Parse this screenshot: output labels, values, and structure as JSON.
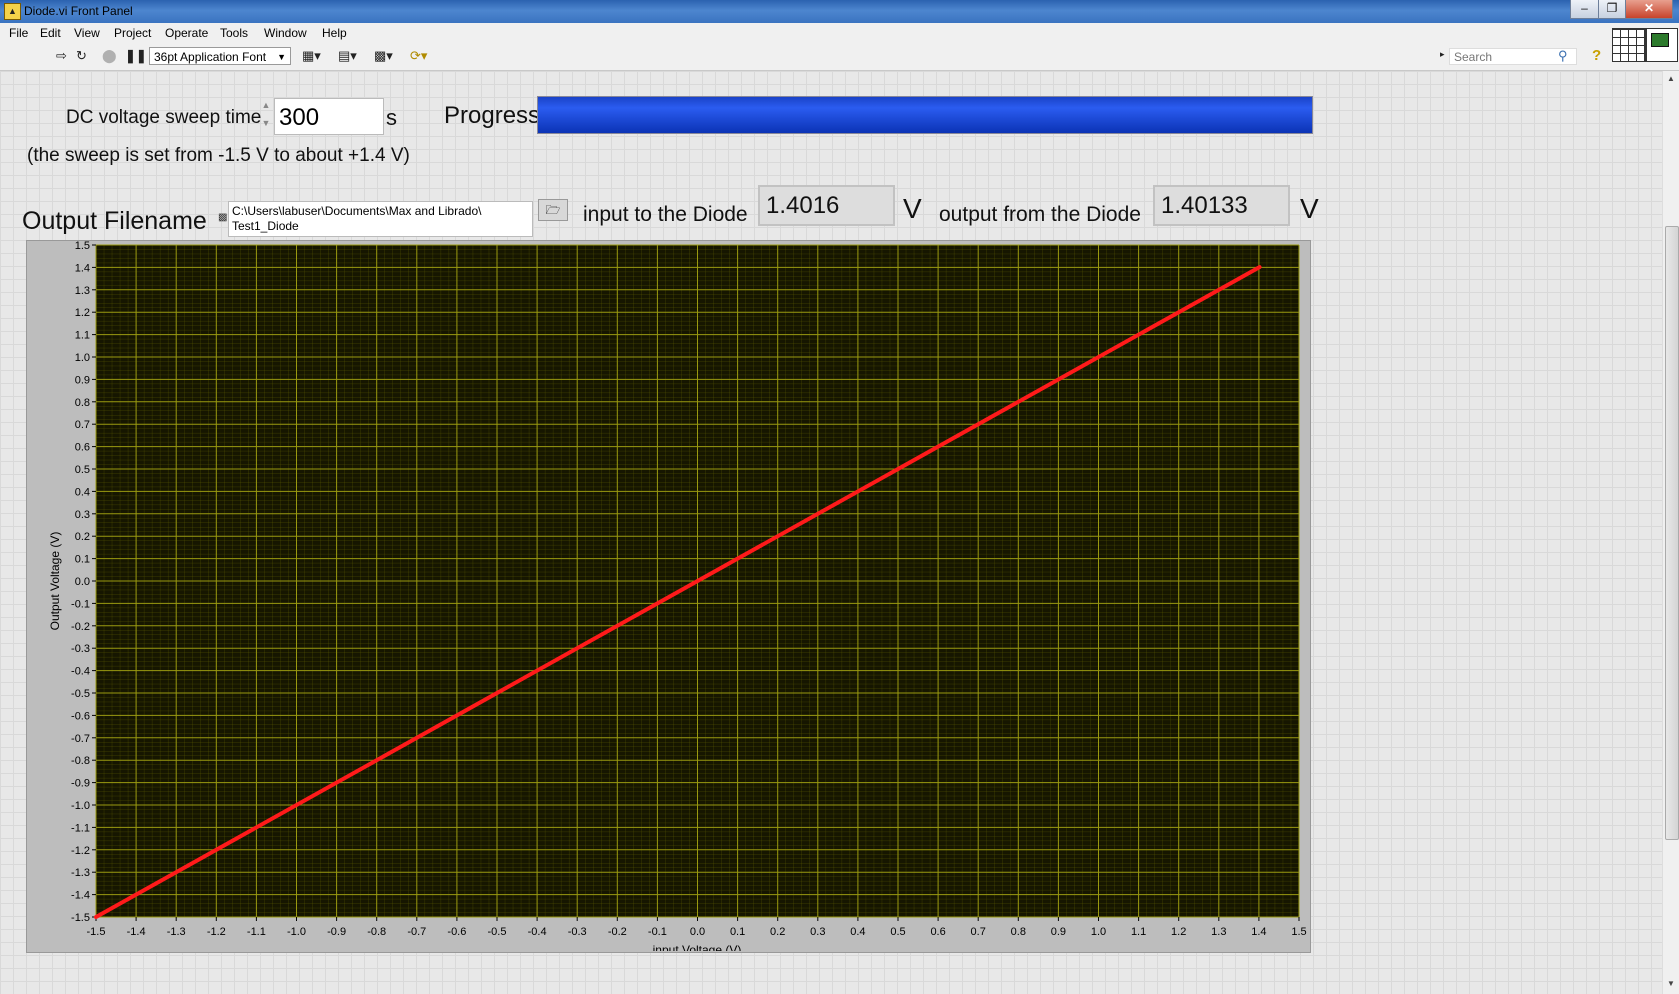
{
  "window": {
    "title": "Diode.vi Front Panel",
    "buttons": {
      "minimize": "–",
      "restore": "❐",
      "close": "✕"
    }
  },
  "menu": [
    "File",
    "Edit",
    "View",
    "Project",
    "Operate",
    "Tools",
    "Window",
    "Help"
  ],
  "toolbar": {
    "font_select": "36pt Application Font",
    "search_placeholder": "Search",
    "icons": [
      "run-arrow-icon",
      "run-continuously-icon",
      "abort-icon",
      "pause-icon",
      "align-objects-icon",
      "distribute-objects-icon",
      "resize-objects-icon",
      "reorder-icon",
      "search-icon",
      "help-icon"
    ]
  },
  "panel": {
    "sweep_label": "DC voltage sweep time",
    "sweep_value": "300",
    "sweep_unit": "s",
    "sweep_note": "(the sweep is set from -1.5 V to about +1.4 V)",
    "progress_label": "Progress",
    "progress_fraction": 1.0,
    "filename_label": "Output Filename",
    "filename_line1": "C:\\Users\\labuser\\Documents\\Max and Librado\\",
    "filename_line2": "Test1_Diode",
    "input_label": "input to the Diode",
    "input_value": "1.4016",
    "input_unit": "V",
    "output_label": "output from the Diode",
    "output_value": "1.40133",
    "output_unit": "V"
  },
  "colors": {
    "plot_bg": "#161600",
    "grid": "#6b6b00",
    "trace": "#ff1a1a",
    "progress": "#1f4ee0"
  },
  "chart_data": {
    "type": "line",
    "xlabel": "input Voltage (V)",
    "ylabel": "Output Voltage (V)",
    "xlim": [
      -1.5,
      1.5
    ],
    "ylim": [
      -1.5,
      1.5
    ],
    "x_ticks": [
      "-1.5",
      "-1.4",
      "-1.3",
      "-1.2",
      "-1.1",
      "-1.0",
      "-0.9",
      "-0.8",
      "-0.7",
      "-0.6",
      "-0.5",
      "-0.4",
      "-0.3",
      "-0.2",
      "-0.1",
      "0.0",
      "0.1",
      "0.2",
      "0.3",
      "0.4",
      "0.5",
      "0.6",
      "0.7",
      "0.8",
      "0.9",
      "1.0",
      "1.1",
      "1.2",
      "1.3",
      "1.4",
      "1.5"
    ],
    "y_ticks": [
      "-1.5",
      "-1.4",
      "-1.3",
      "-1.2",
      "-1.1",
      "-1.0",
      "-0.9",
      "-0.8",
      "-0.7",
      "-0.6",
      "-0.5",
      "-0.4",
      "-0.3",
      "-0.2",
      "-0.1",
      "0.0",
      "0.1",
      "0.2",
      "0.3",
      "0.4",
      "0.5",
      "0.6",
      "0.7",
      "0.8",
      "0.9",
      "1.0",
      "1.1",
      "1.2",
      "1.3",
      "1.4",
      "1.5"
    ],
    "grid": true,
    "series": [
      {
        "x": [
          -1.5,
          1.4016
        ],
        "y": [
          -1.5,
          1.40133
        ]
      }
    ]
  }
}
